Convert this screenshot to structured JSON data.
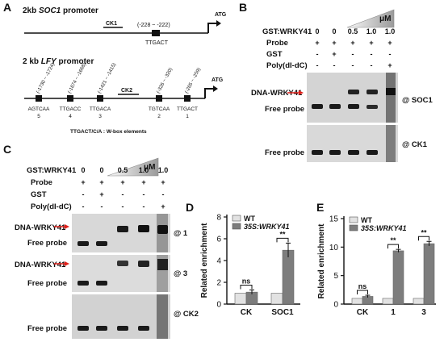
{
  "panels": {
    "A": {
      "letter": "A",
      "soc1_title_pre": "2kb ",
      "soc1_title_gene": "SOC1",
      "soc1_title_post": " promoter",
      "soc1_ck": "CK1",
      "soc1_site_range": "(-228 ~ -222)",
      "soc1_site_seq": "TTGACT",
      "atg": "ATG",
      "lfy_title_pre": "2 kb ",
      "lfy_title_gene": "LFY",
      "lfy_title_post": "  promoter",
      "lfy_ck": "CK2",
      "lfy_sites": [
        {
          "range": "(-1730 ~ -1724)",
          "seq": "AGTCAA",
          "num": "5"
        },
        {
          "range": "(-1674 ~ -1668)",
          "seq": "TTGACC",
          "num": "4"
        },
        {
          "range": "(-1421 ~ -1415)",
          "seq": "TTGACA",
          "num": "3"
        },
        {
          "range": "(-326 ~ -320)",
          "seq": "TGTCAA",
          "num": "2"
        },
        {
          "range": "(-265 ~ -259)",
          "seq": "TTGACT",
          "num": "1"
        }
      ],
      "legend": "TTGACT/C/A : W-box elements"
    },
    "B": {
      "letter": "B",
      "row_gst_wrky": "GST:WRKY41",
      "gst_wrky_values": [
        "0",
        "0",
        "0.5",
        "1.0",
        "1.0"
      ],
      "unit": "μM",
      "row_probe": "Probe",
      "probe_values": [
        "+",
        "+",
        "+",
        "+",
        "+"
      ],
      "row_gst": "GST",
      "gst_values": [
        "-",
        "+",
        "-",
        "-",
        "-"
      ],
      "row_poly": "Poly(dI-dC)",
      "poly_values": [
        "-",
        "-",
        "-",
        "-",
        "+"
      ],
      "complex_label": "DNA-WRKY41",
      "free_probe": "Free probe",
      "gel1_tag": "@ SOC1",
      "gel2_tag": "@ CK1"
    },
    "C": {
      "letter": "C",
      "row_gst_wrky": "GST:WRKY41",
      "gst_wrky_values": [
        "0",
        "0",
        "0.5",
        "1.0",
        "1.0"
      ],
      "unit": "μM",
      "row_probe": "Probe",
      "probe_values": [
        "+",
        "+",
        "+",
        "+",
        "+"
      ],
      "row_gst": "GST",
      "gst_values": [
        "-",
        "+",
        "-",
        "-",
        "-"
      ],
      "row_poly": "Poly(dI-dC)",
      "poly_values": [
        "-",
        "-",
        "-",
        "-",
        "+"
      ],
      "complex_label": "DNA-WRKY41",
      "free_probe": "Free  probe",
      "gel1_tag": "@ 1",
      "gel2_tag": "@ 3",
      "gel3_tag": "@ CK2"
    }
  },
  "chart_data": [
    {
      "panel": "D",
      "type": "bar",
      "categories": [
        "CK",
        "SOC1"
      ],
      "series": [
        {
          "name": "WT",
          "values": [
            1.0,
            1.0
          ],
          "errors": [
            0.0,
            0.0
          ],
          "color": "#e2e2e2"
        },
        {
          "name": "35S:WRKY41",
          "values": [
            1.1,
            4.95
          ],
          "errors": [
            0.2,
            0.65
          ],
          "color": "#7d7d7d"
        }
      ],
      "ylabel": "Related enrichment",
      "ylim": [
        0,
        8
      ],
      "yticks": [
        "0",
        "2",
        "4",
        "6",
        "8"
      ],
      "significance": [
        "ns",
        "**"
      ],
      "legend_position": "top-left"
    },
    {
      "panel": "E",
      "type": "bar",
      "categories": [
        "CK",
        "1",
        "3"
      ],
      "series": [
        {
          "name": "WT",
          "values": [
            1.0,
            1.0,
            1.0
          ],
          "errors": [
            0.0,
            0.0,
            0.0
          ],
          "color": "#e2e2e2"
        },
        {
          "name": "35S:WRKY41",
          "values": [
            1.35,
            9.35,
            10.6
          ],
          "errors": [
            0.2,
            0.25,
            0.4
          ],
          "color": "#7d7d7d"
        }
      ],
      "ylabel": "Related enrichment",
      "ylim": [
        0,
        15
      ],
      "yticks": [
        "0",
        "5",
        "10",
        "15"
      ],
      "significance": [
        "ns",
        "**",
        "**"
      ],
      "legend_position": "top-left"
    }
  ]
}
